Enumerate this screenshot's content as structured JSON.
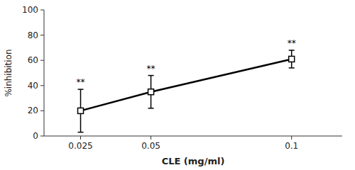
{
  "chart_data": {
    "type": "line",
    "x_label": "CLE (mg/ml)",
    "y_label": "%inhibition",
    "x": [
      0.025,
      0.05,
      0.1
    ],
    "values": [
      20,
      35,
      61
    ],
    "errors": [
      17,
      13,
      7
    ],
    "annotations": [
      "**",
      "**",
      "**"
    ],
    "xlim": [
      0.012,
      0.118
    ],
    "xticks": [
      0.025,
      0.05,
      0.1
    ],
    "ylim": [
      0,
      100
    ],
    "yticks": [
      0,
      20,
      40,
      60,
      80,
      100
    ],
    "color": "black",
    "marker": "square",
    "grid": false
  }
}
